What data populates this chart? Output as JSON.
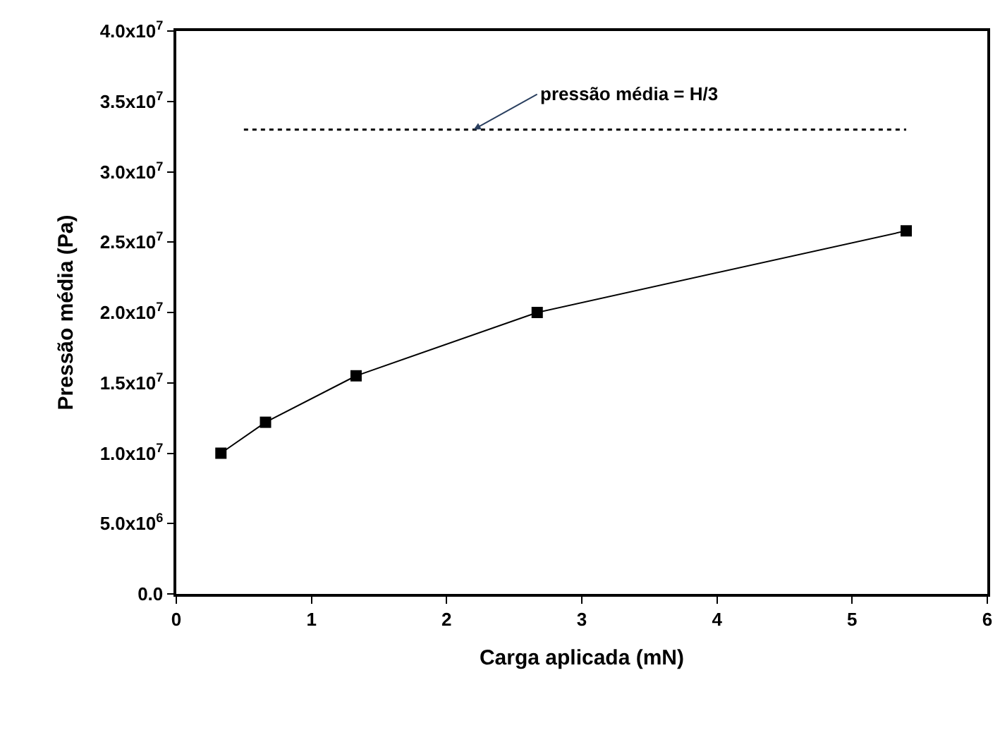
{
  "chart_data": {
    "type": "line",
    "xlabel": "Carga aplicada (mN)",
    "ylabel": "Pressão média (Pa)",
    "series": [
      {
        "color": "#000000",
        "x": [
          0.33,
          0.66,
          1.33,
          2.67,
          5.4
        ],
        "values": [
          10000000,
          12200000,
          15500000,
          20000000,
          25800000
        ],
        "line_style": "solid"
      },
      {
        "color": "#000000",
        "x": [
          0.5,
          5.4
        ],
        "values": [
          33000000,
          33000000
        ],
        "marker": "none",
        "line_style": "dotted"
      }
    ],
    "annotations": [
      {
        "text": "pressão média = H/3",
        "x": 2.2,
        "y": 33000000
      }
    ],
    "xlim": [
      0,
      6
    ],
    "xticks": [
      0,
      1,
      2,
      3,
      4,
      5,
      6
    ],
    "ylim": [
      0,
      40000000
    ],
    "yticks": [
      {
        "value": 0,
        "label": "0.0"
      },
      {
        "value": 5000000,
        "label": "5.0x10$^{6}$"
      },
      {
        "value": 10000000,
        "label": "1.0x10$^{7}$"
      },
      {
        "value": 15000000,
        "label": "1.5x10$^{7}$"
      },
      {
        "value": 20000000,
        "label": "2.0x10$^{7}$"
      },
      {
        "value": 25000000,
        "label": "2.5x10$^{7}$"
      },
      {
        "value": 30000000,
        "label": "3.0x10$^{7}$"
      },
      {
        "value": 35000000,
        "label": "3.5x10$^{7}$"
      },
      {
        "value": 40000000,
        "label": "4.0x10$^{7}$"
      }
    ],
    "marker": "square"
  }
}
